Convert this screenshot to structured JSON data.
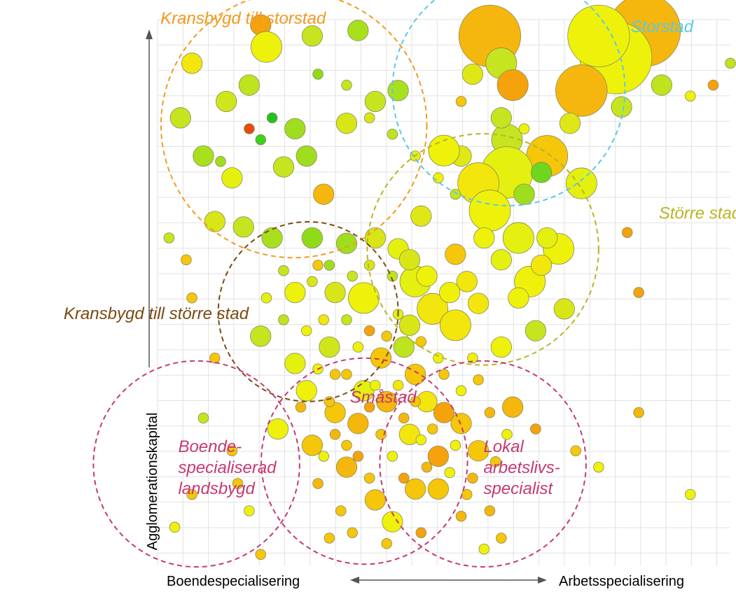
{
  "chart_data": {
    "type": "scatter",
    "title": "",
    "xlabel_left": "Boendespecialisering",
    "xlabel_right": "Arbetsspecialisering",
    "ylabel": "Agglomerationskapital",
    "x_range": [
      0,
      100
    ],
    "y_range": [
      0,
      100
    ],
    "grid": true,
    "legend": "none",
    "regions": [
      {
        "name": "Kranbygd",
        "label": "Kransbygd till storstad",
        "color": "#f39a1e",
        "cx": 23.8,
        "cy": 80.7,
        "r": 23.2,
        "anchor": "start",
        "lx": 0.5,
        "ly": 99.2
      },
      {
        "name": "Storstad",
        "label": "Storstad",
        "color": "#5cc8e6",
        "cx": 61.3,
        "cy": 87.2,
        "r": 20.3,
        "anchor": "start",
        "lx": 82.6,
        "ly": 97.7
      },
      {
        "name": "StorreStad",
        "label": "Större stad",
        "color": "#b8b523",
        "cx": 56.8,
        "cy": 57.9,
        "r": 20.2,
        "anchor": "start",
        "lx": 87.5,
        "ly": 63.5
      },
      {
        "name": "KransbygdStorreStad",
        "label": "Kransbygd till större stad",
        "color": "#7a4a12",
        "cx": 26.3,
        "cy": 46.5,
        "r": 15.7,
        "anchor": "end",
        "lx": 15.9,
        "ly": 45.1
      },
      {
        "name": "Smastad",
        "label": "Småstad",
        "color": "#c43a72",
        "cx": 36.1,
        "cy": 19.1,
        "r": 18.0,
        "anchor": "start",
        "lx": 33.6,
        "ly": 29.8
      },
      {
        "name": "Boende",
        "label": "Boende-\nspecialiserad\nlandsbygd",
        "color": "#c43a72",
        "cx": 6.8,
        "cy": 18.6,
        "r": 18.0,
        "anchor": "start",
        "lx": 3.6,
        "ly": 20.8
      },
      {
        "name": "Lokal",
        "label": "Lokal\narbetslivs-\nspecialist",
        "color": "#c43a72",
        "cx": 56.8,
        "cy": 18.6,
        "r": 18.0,
        "anchor": "start",
        "lx": 56.9,
        "ly": 20.8
      }
    ],
    "series": [
      {
        "values": [
          [
            58,
            97,
            6,
            "#f5b70d"
          ],
          [
            85,
            98,
            7,
            "#f5b70d"
          ],
          [
            80,
            93,
            7,
            "#eef20a"
          ],
          [
            77,
            97,
            6,
            "#eef20a"
          ],
          [
            74,
            87,
            5,
            "#f5b70d"
          ],
          [
            60,
            92,
            3,
            "#c6e520"
          ],
          [
            62,
            88,
            3,
            "#f5a20d"
          ],
          [
            55,
            90,
            2,
            "#dfe816"
          ],
          [
            61,
            78,
            3,
            "#c6e520"
          ],
          [
            68,
            75,
            4,
            "#f5c60a"
          ],
          [
            61,
            72,
            5,
            "#e4f010"
          ],
          [
            56,
            70,
            4,
            "#f2e60c"
          ],
          [
            74,
            70,
            3,
            "#e4f010"
          ],
          [
            53,
            75,
            2,
            "#dfe816"
          ],
          [
            35,
            98,
            2,
            "#a9e01e"
          ],
          [
            18,
            99,
            2,
            "#f5a20d"
          ],
          [
            27,
            97,
            2,
            "#c6e520"
          ],
          [
            19,
            95,
            3,
            "#eef20a"
          ],
          [
            6,
            92,
            2,
            "#f2e60c"
          ],
          [
            16,
            88,
            2,
            "#bde41e"
          ],
          [
            4,
            82,
            2,
            "#c6e520"
          ],
          [
            12,
            85,
            2,
            "#cfe61c"
          ],
          [
            8,
            75,
            2,
            "#a9e01e"
          ],
          [
            13,
            71,
            2,
            "#e4f010"
          ],
          [
            22,
            73,
            2,
            "#c6e520"
          ],
          [
            26,
            75,
            2,
            "#9fde1f"
          ],
          [
            10,
            63,
            2,
            "#d8e618"
          ],
          [
            15,
            62,
            2,
            "#c6e520"
          ],
          [
            20,
            60,
            2,
            "#a9e01e"
          ],
          [
            27,
            60,
            2,
            "#8fdb19"
          ],
          [
            33,
            59,
            2,
            "#9fde1f"
          ],
          [
            38,
            60,
            2,
            "#d8e618"
          ],
          [
            42,
            58,
            2,
            "#e4f010"
          ],
          [
            31,
            50,
            2,
            "#d8e618"
          ],
          [
            36,
            49,
            3,
            "#eef20a"
          ],
          [
            45,
            52,
            3,
            "#e4f010"
          ],
          [
            48,
            47,
            3,
            "#f2e60c"
          ],
          [
            52,
            44,
            3,
            "#f2e60c"
          ],
          [
            43,
            40,
            2,
            "#bde41e"
          ],
          [
            30,
            40,
            2,
            "#cfe61c"
          ],
          [
            24,
            37,
            2,
            "#e4f010"
          ],
          [
            18,
            42,
            2,
            "#c6e520"
          ],
          [
            27,
            22,
            2,
            "#f5c60a"
          ],
          [
            33,
            18,
            2,
            "#f5b70d"
          ],
          [
            35,
            26,
            2,
            "#f5b70d"
          ],
          [
            38,
            12,
            2,
            "#f5c60a"
          ],
          [
            41,
            8,
            2,
            "#eef20a"
          ],
          [
            45,
            14,
            2,
            "#f5c60a"
          ],
          [
            49,
            20,
            2,
            "#f5a20d"
          ],
          [
            44,
            24,
            2,
            "#f2e60c"
          ],
          [
            36,
            32,
            2,
            "#e4f010"
          ],
          [
            31,
            28,
            2,
            "#f5c60a"
          ],
          [
            26,
            32,
            2,
            "#eef20a"
          ],
          [
            21,
            25,
            2,
            "#eef20a"
          ],
          [
            40,
            30,
            2,
            "#f5b70d"
          ],
          [
            8,
            27,
            1,
            "#c6e520"
          ],
          [
            6,
            13,
            1,
            "#f5c60a"
          ],
          [
            3,
            7,
            1,
            "#eef20a"
          ],
          [
            73,
            21,
            1,
            "#f5c60a"
          ],
          [
            77,
            18,
            1,
            "#eef20a"
          ],
          [
            84,
            28,
            1,
            "#f5b70d"
          ],
          [
            93,
            13,
            1,
            "#eef20a"
          ],
          [
            62,
            29,
            2,
            "#f5b70d"
          ],
          [
            66,
            25,
            1,
            "#f5a20d"
          ],
          [
            37,
            43,
            1,
            "#f5a20d"
          ],
          [
            47,
            30,
            2,
            "#f2e60c"
          ],
          [
            50,
            35,
            1,
            "#f5c60a"
          ],
          [
            55,
            38,
            1,
            "#eef20a"
          ],
          [
            28,
            55,
            1,
            "#f5c60a"
          ],
          [
            24,
            50,
            2,
            "#eef20a"
          ],
          [
            29,
            68,
            2,
            "#f5b70d"
          ],
          [
            24,
            80,
            2,
            "#9fde1f"
          ],
          [
            33,
            81,
            2,
            "#d8e618"
          ],
          [
            38,
            85,
            2,
            "#c6e520"
          ],
          [
            42,
            87,
            2,
            "#a9e01e"
          ],
          [
            50,
            76,
            3,
            "#eef20a"
          ],
          [
            46,
            64,
            2,
            "#dfe816"
          ],
          [
            58,
            65,
            4,
            "#eef20a"
          ],
          [
            63,
            60,
            3,
            "#e4f010"
          ],
          [
            65,
            52,
            3,
            "#eef20a"
          ],
          [
            70,
            58,
            3,
            "#eef20a"
          ],
          [
            71,
            47,
            2,
            "#d8e618"
          ],
          [
            66,
            43,
            2,
            "#c6e520"
          ],
          [
            60,
            40,
            2,
            "#eef20a"
          ],
          [
            56,
            48,
            2,
            "#f2e60c"
          ],
          [
            84,
            50,
            1,
            "#f5a20d"
          ],
          [
            82,
            61,
            1,
            "#f5a20d"
          ],
          [
            72,
            81,
            2,
            "#dfe816"
          ],
          [
            81,
            84,
            2,
            "#c6e520"
          ],
          [
            88,
            88,
            2,
            "#bde41e"
          ],
          [
            97,
            88,
            1,
            "#f5a20d"
          ],
          [
            93,
            86,
            1,
            "#eef20a"
          ],
          [
            100,
            92,
            1,
            "#bde41e"
          ],
          [
            10,
            38,
            1,
            "#f5c60a"
          ],
          [
            6,
            49,
            1,
            "#f5c60a"
          ],
          [
            5,
            56,
            1,
            "#f5c60a"
          ],
          [
            2,
            60,
            1,
            "#c6e520"
          ],
          [
            44,
            44,
            2,
            "#d8e618"
          ],
          [
            39,
            38,
            2,
            "#f5c60a"
          ],
          [
            45,
            35,
            2,
            "#f5c60a"
          ],
          [
            50,
            28,
            2,
            "#f5a20d"
          ],
          [
            53,
            26,
            2,
            "#f5c60a"
          ],
          [
            56,
            21,
            2,
            "#f5c60a"
          ],
          [
            49,
            14,
            2,
            "#f5c60a"
          ],
          [
            53,
            9,
            1,
            "#f5b70d"
          ],
          [
            57,
            3,
            1,
            "#eef20a"
          ],
          [
            30,
            5,
            1,
            "#f5c60a"
          ],
          [
            40,
            4,
            1,
            "#f5c60a"
          ],
          [
            46,
            6,
            1,
            "#f5a20d"
          ],
          [
            18,
            2,
            1,
            "#f5c60a"
          ],
          [
            13,
            21,
            1,
            "#f5c60a"
          ],
          [
            14,
            15,
            1,
            "#f5c60a"
          ],
          [
            16,
            10,
            1,
            "#eef20a"
          ],
          [
            28,
            15,
            1,
            "#f5b70d"
          ],
          [
            32,
            10,
            1,
            "#f5c60a"
          ],
          [
            34,
            6,
            1,
            "#f5c60a"
          ],
          [
            43,
            16,
            1,
            "#f5a20d"
          ],
          [
            47,
            18,
            1,
            "#f5b70d"
          ],
          [
            41,
            20,
            1,
            "#eef20a"
          ],
          [
            37,
            16,
            1,
            "#f5c60a"
          ],
          [
            35,
            20,
            1,
            "#f5a20d"
          ],
          [
            39,
            24,
            1,
            "#f5c60a"
          ],
          [
            43,
            27,
            1,
            "#f5b70d"
          ],
          [
            46,
            23,
            1,
            "#eef20a"
          ],
          [
            48,
            25,
            1,
            "#f5c60a"
          ],
          [
            51,
            17,
            1,
            "#eef20a"
          ],
          [
            54,
            13,
            1,
            "#f5c60a"
          ],
          [
            58,
            10,
            1,
            "#f5b70d"
          ],
          [
            60,
            5,
            1,
            "#f5c60a"
          ],
          [
            11,
            74,
            1,
            "#9fde1f"
          ],
          [
            18,
            78,
            1,
            "#3fcf1e"
          ],
          [
            20,
            82,
            1,
            "#22c21f"
          ],
          [
            16,
            80,
            1,
            "#e84b0c"
          ],
          [
            28,
            90,
            1,
            "#8fdb19"
          ],
          [
            33,
            88,
            1,
            "#c6e520"
          ],
          [
            37,
            82,
            1,
            "#d8e618"
          ],
          [
            41,
            79,
            1,
            "#bde41e"
          ],
          [
            45,
            75,
            1,
            "#e4f010"
          ],
          [
            49,
            71,
            1,
            "#eef20a"
          ],
          [
            52,
            68,
            1,
            "#c6e520"
          ],
          [
            64,
            68,
            2,
            "#9fde1f"
          ],
          [
            67,
            72,
            2,
            "#6ed61c"
          ],
          [
            60,
            82,
            2,
            "#c6e520"
          ],
          [
            53,
            85,
            1,
            "#f5c60a"
          ],
          [
            64,
            80,
            1,
            "#eef20a"
          ],
          [
            68,
            60,
            2,
            "#e4f010"
          ],
          [
            67,
            55,
            2,
            "#f2e60c"
          ],
          [
            63,
            49,
            2,
            "#eef20a"
          ],
          [
            60,
            56,
            2,
            "#e4f010"
          ],
          [
            57,
            60,
            2,
            "#eef20a"
          ],
          [
            52,
            57,
            2,
            "#f5c60a"
          ],
          [
            54,
            52,
            2,
            "#f2e60c"
          ],
          [
            51,
            50,
            2,
            "#eef20a"
          ],
          [
            47,
            53,
            2,
            "#eef20a"
          ],
          [
            44,
            56,
            2,
            "#d8e618"
          ],
          [
            41,
            53,
            1,
            "#bde41e"
          ],
          [
            37,
            55,
            1,
            "#d8e618"
          ],
          [
            34,
            53,
            1,
            "#c6e520"
          ],
          [
            30,
            55,
            1,
            "#9fde1f"
          ],
          [
            27,
            52,
            1,
            "#d8e618"
          ],
          [
            22,
            54,
            1,
            "#c6e520"
          ],
          [
            19,
            49,
            1,
            "#e4f010"
          ],
          [
            22,
            45,
            1,
            "#bde41e"
          ],
          [
            26,
            43,
            1,
            "#eef20a"
          ],
          [
            29,
            45,
            1,
            "#f2e60c"
          ],
          [
            33,
            45,
            1,
            "#c6e520"
          ],
          [
            35,
            40,
            1,
            "#eef20a"
          ],
          [
            40,
            42,
            1,
            "#f5c60a"
          ],
          [
            42,
            46,
            1,
            "#e4f010"
          ],
          [
            46,
            41,
            1,
            "#f5c60a"
          ],
          [
            49,
            38,
            1,
            "#eef20a"
          ],
          [
            31,
            35,
            1,
            "#f5c60a"
          ],
          [
            28,
            36,
            1,
            "#eef20a"
          ],
          [
            25,
            29,
            1,
            "#f5b70d"
          ],
          [
            30,
            30,
            1,
            "#f5c60a"
          ],
          [
            37,
            29,
            1,
            "#f5a20d"
          ],
          [
            42,
            33,
            1,
            "#f2e60c"
          ],
          [
            53,
            32,
            1,
            "#eef20a"
          ],
          [
            56,
            34,
            1,
            "#f5c60a"
          ],
          [
            58,
            28,
            1,
            "#f5b70d"
          ],
          [
            61,
            24,
            1,
            "#eef20a"
          ],
          [
            59,
            19,
            1,
            "#f5c60a"
          ],
          [
            55,
            16,
            1,
            "#f5b70d"
          ],
          [
            52,
            22,
            1,
            "#eef20a"
          ],
          [
            45,
            30,
            1,
            "#f5c60a"
          ],
          [
            38,
            33,
            1,
            "#eef20a"
          ],
          [
            33,
            35,
            1,
            "#f5c60a"
          ],
          [
            29,
            20,
            1,
            "#eef20a"
          ],
          [
            31,
            24,
            1,
            "#f5b70d"
          ],
          [
            33,
            22,
            1,
            "#f5c60a"
          ]
        ]
      }
    ]
  }
}
